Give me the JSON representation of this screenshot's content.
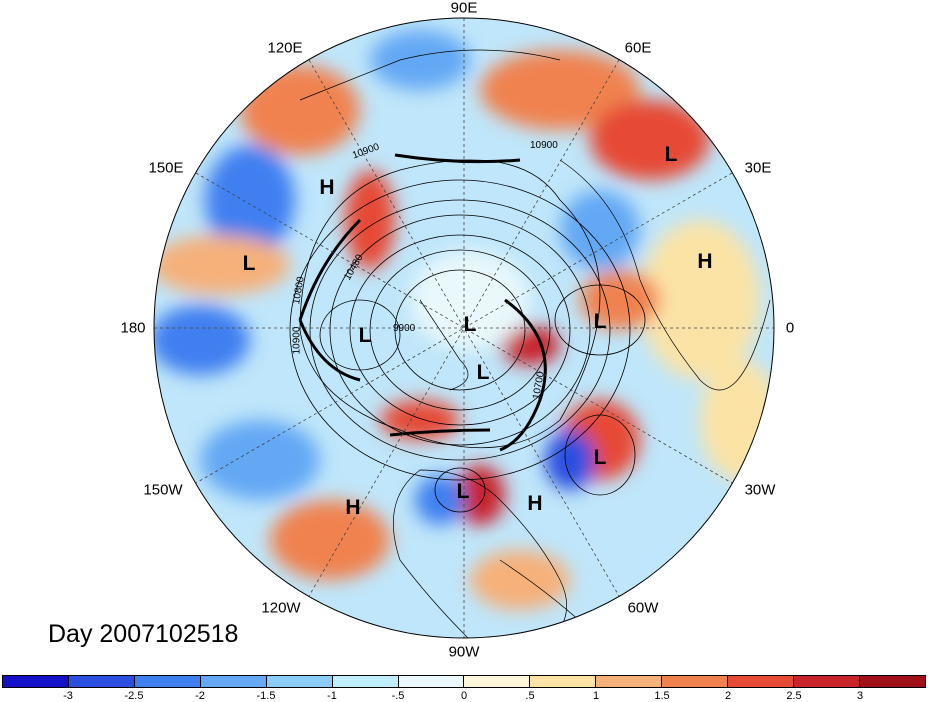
{
  "longitude_labels": {
    "lon_90e": "90E",
    "lon_120e": "120E",
    "lon_60e": "60E",
    "lon_150e": "150E",
    "lon_30e": "30E",
    "lon_180": "180",
    "lon_0": "0",
    "lon_150w": "150W",
    "lon_30w": "30W",
    "lon_120w": "120W",
    "lon_60w": "60W",
    "lon_90w": "90W"
  },
  "pressure_centers": [
    {
      "type": "L",
      "id": "ne-atlantic-far"
    },
    {
      "type": "H",
      "id": "west-pacific"
    },
    {
      "type": "L",
      "id": "north-pacific-west"
    },
    {
      "type": "H",
      "id": "europe"
    },
    {
      "type": "L",
      "id": "bering"
    },
    {
      "type": "L",
      "id": "pole"
    },
    {
      "type": "L",
      "id": "scandinavia"
    },
    {
      "type": "L",
      "id": "arctic-canada"
    },
    {
      "type": "L",
      "id": "north-atlantic"
    },
    {
      "type": "L",
      "id": "great-lakes"
    },
    {
      "type": "H",
      "id": "west-atlantic"
    },
    {
      "type": "H",
      "id": "east-pacific"
    }
  ],
  "contour_labels": {
    "c1": "10900",
    "c2": "10900",
    "c3": "10480",
    "c4": "10800",
    "c5": "9900",
    "c6": "10900",
    "c7": "10700"
  },
  "day_label": "Day 2007102518",
  "colorbar": {
    "colors": [
      "#1410c8",
      "#2a4fe0",
      "#3f7ff0",
      "#64a8f4",
      "#8ccdf8",
      "#bfeefc",
      "#e8f8fc",
      "#fdf6d8",
      "#fbe3a6",
      "#f6b07a",
      "#f08250",
      "#e64a36",
      "#c8242a",
      "#a01018"
    ],
    "ticks": [
      "-3",
      "-2.5",
      "-2",
      "-1.5",
      "-1",
      "-.5",
      "0",
      ".5",
      "1",
      "1.5",
      "2",
      "2.5",
      "3"
    ]
  },
  "map": {
    "projection": "north-polar-stereographic",
    "field_palette_note": "anomaly shading"
  }
}
